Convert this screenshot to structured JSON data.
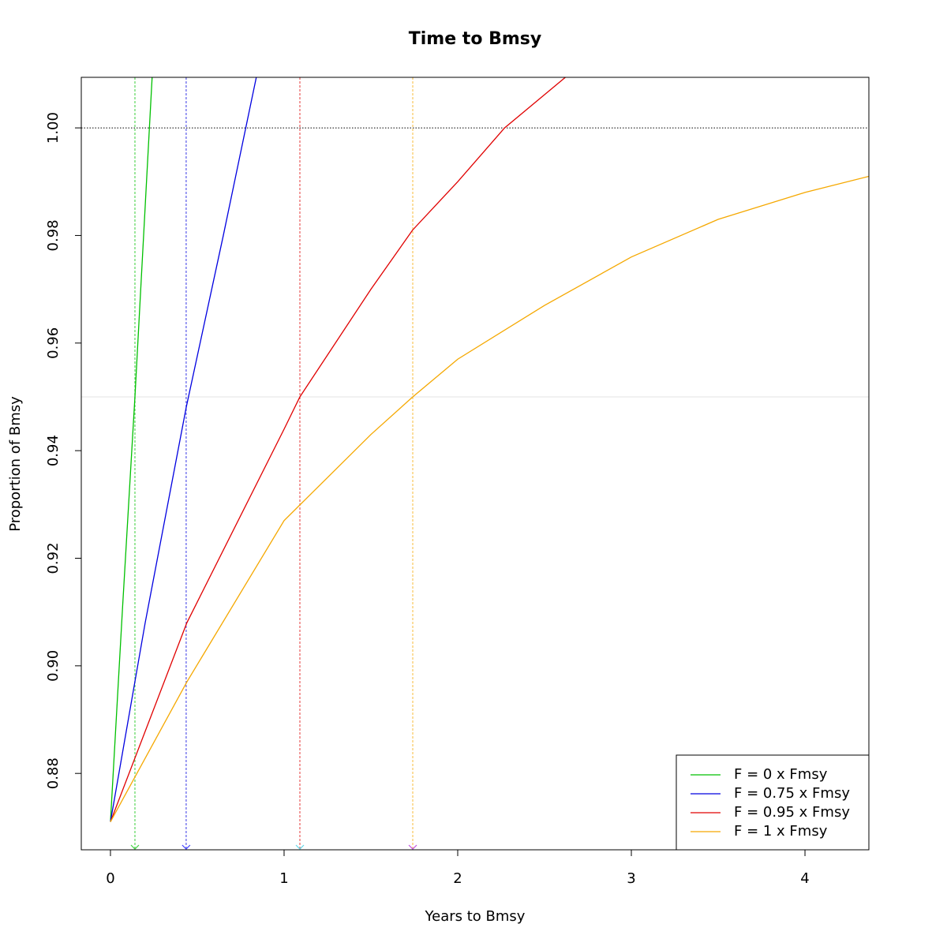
{
  "chart_data": {
    "type": "line",
    "title": "Time to Bmsy",
    "xlabel": "Years to Bmsy",
    "ylabel": "Proportion of Bmsy",
    "xlim": [
      -0.168,
      4.368
    ],
    "ylim": [
      0.8658,
      1.0094
    ],
    "xticks": [
      0,
      1,
      2,
      3,
      4
    ],
    "yticks": [
      0.88,
      {
        "value": 0.9,
        "label": "0.90"
      },
      0.92,
      0.94,
      0.96,
      0.98,
      {
        "value": 1.0,
        "label": "1.00"
      }
    ],
    "hlines": [
      {
        "value": 1.0,
        "color": "#000000",
        "dash": "1.5,2"
      },
      {
        "value": 0.95,
        "color": "#e3e3e3",
        "dash": ""
      }
    ],
    "legend": "bottom-right",
    "series": [
      {
        "name": "F = 0 x Fmsy",
        "color": "#00c000",
        "arrow_color": "#40d040",
        "bmsy_time": 0.141,
        "x": [
          0,
          0.07,
          0.141,
          0.24
        ],
        "values": [
          0.871,
          0.911,
          0.95,
          1.0094
        ]
      },
      {
        "name": "F = 0.75 x Fmsy",
        "color": "#0000e0",
        "arrow_color": "#4040ff",
        "bmsy_time": 0.436,
        "x": [
          0,
          0.2,
          0.436,
          0.65,
          0.84
        ],
        "values": [
          0.871,
          0.908,
          0.948,
          0.98,
          1.0094
        ]
      },
      {
        "name": "F = 0.95 x Fmsy",
        "color": "#e00000",
        "arrow_color": "#60d8e8",
        "bmsy_time": 1.091,
        "x": [
          0,
          0.44,
          1,
          1.091,
          1.5,
          1.74,
          2,
          2.27,
          2.62
        ],
        "values": [
          0.871,
          0.908,
          0.944,
          0.95,
          0.97,
          0.981,
          0.99,
          1.0,
          1.0094
        ]
      },
      {
        "name": "F = 1 x Fmsy",
        "color": "#f5a800",
        "arrow_color": "#c050e0",
        "bmsy_time": 1.741,
        "x": [
          0,
          0.44,
          1,
          1.5,
          1.741,
          2,
          2.5,
          3,
          3.5,
          4,
          4.368
        ],
        "values": [
          0.871,
          0.897,
          0.927,
          0.943,
          0.95,
          0.957,
          0.967,
          0.976,
          0.983,
          0.988,
          0.991
        ]
      }
    ]
  }
}
